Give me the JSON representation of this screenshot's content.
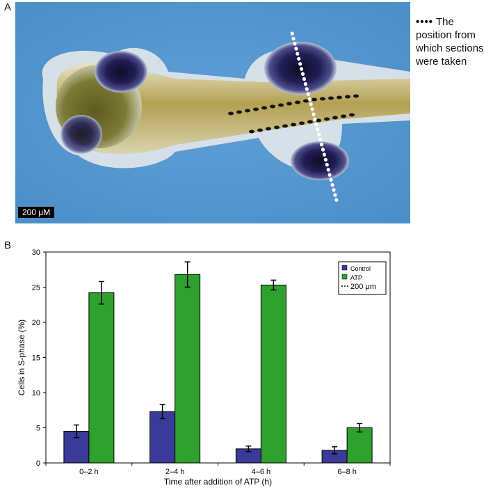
{
  "panels": {
    "a_letter": "A",
    "b_letter": "B"
  },
  "photo": {
    "scale_bar_label": "200 μM",
    "annotation": {
      "marker": "••••",
      "text": "The position from which sections were taken"
    }
  },
  "chart_data": {
    "type": "bar",
    "title": "",
    "xlabel": "Time after addition of ATP (h)",
    "ylabel": "Cells in S-phase (%)",
    "categories": [
      "0–2 h",
      "2–4 h",
      "4–6 h",
      "6–8 h"
    ],
    "ylim": [
      0,
      30
    ],
    "yticks": [
      0,
      5,
      10,
      15,
      20,
      25,
      30
    ],
    "series": [
      {
        "name": "Control",
        "color": "#3a3a99",
        "values": [
          4.5,
          7.3,
          2.0,
          1.8
        ],
        "errors": [
          0.9,
          1.0,
          0.4,
          0.5
        ]
      },
      {
        "name": "ATP",
        "color": "#2ea12e",
        "values": [
          24.2,
          26.8,
          25.3,
          5.0
        ],
        "errors": [
          1.6,
          1.8,
          0.7,
          0.6
        ]
      }
    ],
    "legend": {
      "position": "top-right",
      "entries": [
        {
          "label": "Control",
          "kind": "box",
          "color": "#3a3a99"
        },
        {
          "label": "ATP",
          "kind": "box",
          "color": "#2ea12e"
        },
        {
          "label": "200 μm",
          "kind": "dash",
          "color": "#000000"
        }
      ]
    },
    "grid": false
  }
}
